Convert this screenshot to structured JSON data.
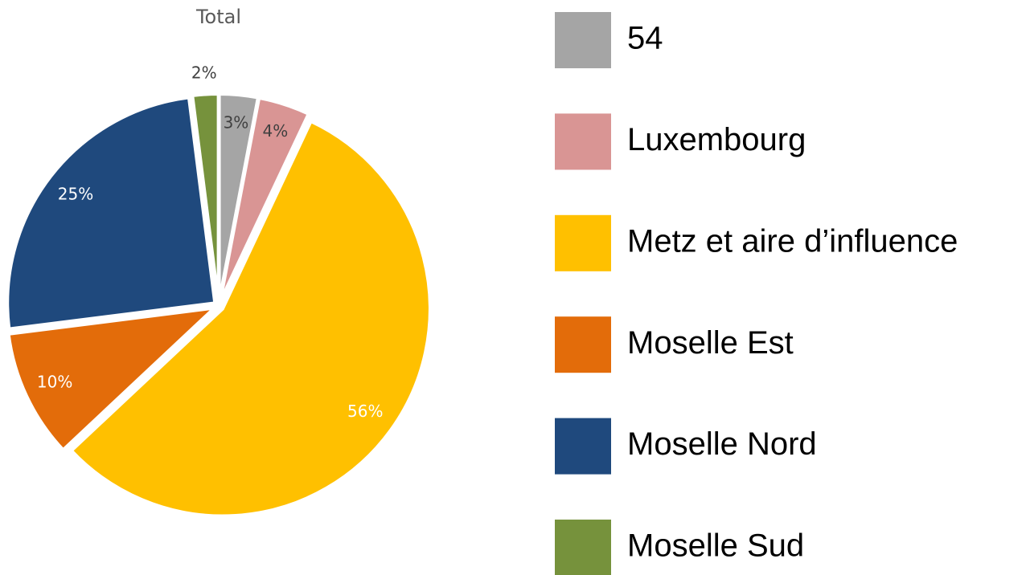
{
  "chart_data": {
    "type": "pie",
    "title": "Total",
    "categories": [
      "54",
      "Luxembourg",
      "Metz et aire d’influence",
      "Moselle Est",
      "Moselle Nord",
      "Moselle Sud"
    ],
    "values": [
      3,
      4,
      56,
      10,
      25,
      2
    ],
    "value_labels": [
      "3%",
      "4%",
      "56%",
      "10%",
      "25%",
      "2%"
    ],
    "colors": [
      "#a5a5a5",
      "#d99594",
      "#ffc000",
      "#e36c0a",
      "#1f497d",
      "#76923c"
    ],
    "legend": "right"
  }
}
